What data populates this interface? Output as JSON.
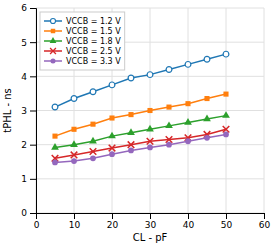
{
  "chart_data": {
    "type": "line",
    "xlabel": "CL - pF",
    "ylabel": "tPHL - ns",
    "x": [
      5,
      10,
      15,
      20,
      25,
      30,
      35,
      40,
      45,
      50
    ],
    "series": [
      {
        "name": "VCCB = 1.2 V",
        "values": [
          3.1,
          3.35,
          3.55,
          3.75,
          3.95,
          4.05,
          4.2,
          4.35,
          4.5,
          4.65
        ],
        "marker": "circle-open"
      },
      {
        "name": "VCCB = 1.5 V",
        "values": [
          2.25,
          2.45,
          2.6,
          2.78,
          2.88,
          3.0,
          3.1,
          3.2,
          3.35,
          3.48
        ],
        "marker": "square"
      },
      {
        "name": "VCCB = 1.8 V",
        "values": [
          1.92,
          2.0,
          2.1,
          2.25,
          2.35,
          2.45,
          2.55,
          2.65,
          2.75,
          2.85
        ],
        "marker": "triangle"
      },
      {
        "name": "VCCB = 2.5 V",
        "values": [
          1.6,
          1.7,
          1.8,
          1.9,
          2.0,
          2.1,
          2.15,
          2.2,
          2.3,
          2.45
        ],
        "marker": "x"
      },
      {
        "name": "VCCB = 3.3 V",
        "values": [
          1.48,
          1.52,
          1.6,
          1.72,
          1.83,
          1.92,
          2.0,
          2.1,
          2.2,
          2.3
        ],
        "marker": "circle"
      }
    ],
    "line_style": "solid",
    "xlim": [
      0,
      60
    ],
    "ylim": [
      0,
      6
    ],
    "xticks": [
      0,
      10,
      20,
      30,
      40,
      50,
      60
    ],
    "yticks": [
      0,
      1,
      2,
      3,
      4,
      5,
      6
    ],
    "grid": true,
    "legend": "upper left"
  }
}
